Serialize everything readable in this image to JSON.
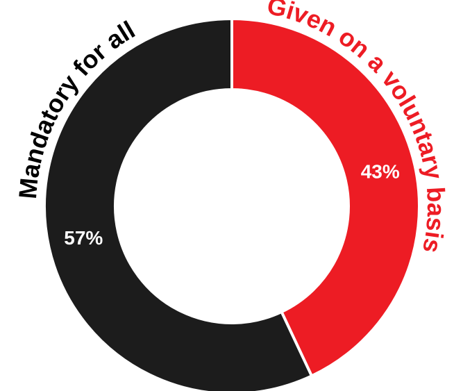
{
  "chart_data": {
    "type": "pie",
    "donut": true,
    "categories": [
      "Given on a voluntary basis",
      "Mandatory for all"
    ],
    "values": [
      43,
      57
    ],
    "value_labels": [
      "43%",
      "57%"
    ],
    "colors": [
      "#ed1c24",
      "#1c1c1c"
    ],
    "label_colors": [
      "#ed1c24",
      "#000000"
    ],
    "legend": "none"
  }
}
